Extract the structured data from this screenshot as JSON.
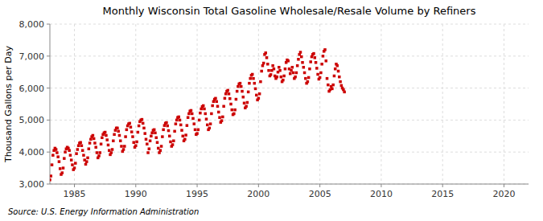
{
  "chart_data": {
    "type": "scatter",
    "title": "Monthly Wisconsin Total Gasoline Wholesale/Resale Volume by Refiners",
    "ylabel": "Thousand Gallons per Day",
    "annotations": [
      "Source: U.S. Energy Information Administration"
    ],
    "color": "#cc0000",
    "marker": "square",
    "grid": true,
    "xlim": [
      1983,
      2022
    ],
    "ylim": [
      3000,
      8000
    ],
    "xticks": [
      1985,
      1990,
      1995,
      2000,
      2005,
      2010,
      2015,
      2020
    ],
    "yticks": [
      {
        "value": 3000,
        "label": "3,000"
      },
      {
        "value": 4000,
        "label": "4,000"
      },
      {
        "value": 5000,
        "label": "5,000"
      },
      {
        "value": 6000,
        "label": "6,000"
      },
      {
        "value": 7000,
        "label": "7,000"
      },
      {
        "value": 8000,
        "label": "8,000"
      }
    ],
    "x": [
      1983.0,
      1983.083,
      1983.167,
      1983.25,
      1983.333,
      1983.417,
      1983.5,
      1983.583,
      1983.667,
      1983.75,
      1983.833,
      1983.917,
      1984.0,
      1984.083,
      1984.167,
      1984.25,
      1984.333,
      1984.417,
      1984.5,
      1984.583,
      1984.667,
      1984.75,
      1984.833,
      1984.917,
      1985.0,
      1985.083,
      1985.167,
      1985.25,
      1985.333,
      1985.417,
      1985.5,
      1985.583,
      1985.667,
      1985.75,
      1985.833,
      1985.917,
      1986.0,
      1986.083,
      1986.167,
      1986.25,
      1986.333,
      1986.417,
      1986.5,
      1986.583,
      1986.667,
      1986.75,
      1986.833,
      1986.917,
      1987.0,
      1987.083,
      1987.167,
      1987.25,
      1987.333,
      1987.417,
      1987.5,
      1987.583,
      1987.667,
      1987.75,
      1987.833,
      1987.917,
      1988.0,
      1988.083,
      1988.167,
      1988.25,
      1988.333,
      1988.417,
      1988.5,
      1988.583,
      1988.667,
      1988.75,
      1988.833,
      1988.917,
      1989.0,
      1989.083,
      1989.167,
      1989.25,
      1989.333,
      1989.417,
      1989.5,
      1989.583,
      1989.667,
      1989.75,
      1989.833,
      1989.917,
      1990.0,
      1990.083,
      1990.167,
      1990.25,
      1990.333,
      1990.417,
      1990.5,
      1990.583,
      1990.667,
      1990.75,
      1990.833,
      1990.917,
      1991.0,
      1991.083,
      1991.167,
      1991.25,
      1991.333,
      1991.417,
      1991.5,
      1991.583,
      1991.667,
      1991.75,
      1991.833,
      1991.917,
      1992.0,
      1992.083,
      1992.167,
      1992.25,
      1992.333,
      1992.417,
      1992.5,
      1992.583,
      1992.667,
      1992.75,
      1992.833,
      1992.917,
      1993.0,
      1993.083,
      1993.167,
      1993.25,
      1993.333,
      1993.417,
      1993.5,
      1993.583,
      1993.667,
      1993.75,
      1993.833,
      1993.917,
      1994.0,
      1994.083,
      1994.167,
      1994.25,
      1994.333,
      1994.417,
      1994.5,
      1994.583,
      1994.667,
      1994.75,
      1994.833,
      1994.917,
      1995.0,
      1995.083,
      1995.167,
      1995.25,
      1995.333,
      1995.417,
      1995.5,
      1995.583,
      1995.667,
      1995.75,
      1995.833,
      1995.917,
      1996.0,
      1996.083,
      1996.167,
      1996.25,
      1996.333,
      1996.417,
      1996.5,
      1996.583,
      1996.667,
      1996.75,
      1996.833,
      1996.917,
      1997.0,
      1997.083,
      1997.167,
      1997.25,
      1997.333,
      1997.417,
      1997.5,
      1997.583,
      1997.667,
      1997.75,
      1997.833,
      1997.917,
      1998.0,
      1998.083,
      1998.167,
      1998.25,
      1998.333,
      1998.417,
      1998.5,
      1998.583,
      1998.667,
      1998.75,
      1998.833,
      1998.917,
      1999.0,
      1999.083,
      1999.167,
      1999.25,
      1999.333,
      1999.417,
      1999.5,
      1999.583,
      1999.667,
      1999.75,
      1999.833,
      1999.917,
      2000.0,
      2000.083,
      2000.167,
      2000.25,
      2000.333,
      2000.417,
      2000.5,
      2000.583,
      2000.667,
      2000.75,
      2000.833,
      2000.917,
      2001.0,
      2001.083,
      2001.167,
      2001.25,
      2001.333,
      2001.417,
      2001.5,
      2001.583,
      2001.667,
      2001.75,
      2001.833,
      2001.917,
      2002.0,
      2002.083,
      2002.167,
      2002.25,
      2002.333,
      2002.417,
      2002.5,
      2002.583,
      2002.667,
      2002.75,
      2002.833,
      2002.917,
      2003.0,
      2003.083,
      2003.167,
      2003.25,
      2003.333,
      2003.417,
      2003.5,
      2003.583,
      2003.667,
      2003.75,
      2003.833,
      2003.917,
      2004.0,
      2004.083,
      2004.167,
      2004.25,
      2004.333,
      2004.417,
      2004.5,
      2004.583,
      2004.667,
      2004.75,
      2004.833,
      2004.917,
      2005.0,
      2005.083,
      2005.167,
      2005.25,
      2005.333,
      2005.417,
      2005.5,
      2005.583,
      2005.667,
      2005.75,
      2005.833,
      2005.917,
      2006.0,
      2006.083,
      2006.167,
      2006.25,
      2006.333,
      2006.417,
      2006.5,
      2006.583,
      2006.667,
      2006.75,
      2006.833,
      2006.917,
      2007.0
    ],
    "values": [
      3130,
      3250,
      3600,
      3900,
      4050,
      4120,
      4080,
      3980,
      3850,
      3700,
      3480,
      3300,
      3350,
      3500,
      3800,
      4000,
      4100,
      4150,
      4120,
      4050,
      3900,
      3750,
      3600,
      3450,
      3500,
      3650,
      3950,
      4080,
      4200,
      4280,
      4300,
      4200,
      4050,
      3900,
      3750,
      3620,
      3700,
      3820,
      4100,
      4280,
      4400,
      4480,
      4520,
      4420,
      4280,
      4150,
      3980,
      3820,
      3880,
      3980,
      4250,
      4450,
      4550,
      4600,
      4620,
      4520,
      4380,
      4220,
      4050,
      3920,
      3980,
      4080,
      4350,
      4550,
      4680,
      4750,
      4750,
      4650,
      4520,
      4350,
      4180,
      4020,
      4080,
      4180,
      4480,
      4700,
      4820,
      4880,
      4900,
      4780,
      4630,
      4480,
      4300,
      4150,
      4200,
      4320,
      4620,
      4820,
      4950,
      5000,
      5020,
      4900,
      4750,
      4580,
      4400,
      4250,
      3980,
      4100,
      4350,
      4500,
      4600,
      4680,
      4700,
      4600,
      4450,
      4300,
      4120,
      3980,
      4050,
      4180,
      4480,
      4700,
      4830,
      4900,
      4920,
      4820,
      4670,
      4500,
      4320,
      4180,
      4230,
      4350,
      4650,
      4880,
      5000,
      5080,
      5100,
      5000,
      4850,
      4680,
      4500,
      4350,
      4400,
      4530,
      4830,
      5080,
      5200,
      5280,
      5300,
      5200,
      5050,
      4880,
      4700,
      4550,
      4580,
      4700,
      5000,
      5220,
      5350,
      5420,
      5450,
      5350,
      5200,
      5030,
      4850,
      4700,
      4750,
      4880,
      5200,
      5450,
      5580,
      5650,
      5680,
      5580,
      5430,
      5250,
      5080,
      4930,
      4980,
      5100,
      5430,
      5680,
      5820,
      5900,
      5930,
      5820,
      5670,
      5500,
      5320,
      5170,
      5200,
      5320,
      5650,
      5900,
      6050,
      6130,
      6150,
      6050,
      5900,
      5720,
      5530,
      5380,
      5430,
      5550,
      5880,
      6150,
      6300,
      6400,
      6430,
      6300,
      6150,
      5980,
      5780,
      5630,
      5680,
      5820,
      6200,
      6530,
      6700,
      6780,
      7050,
      7100,
      6950,
      6750,
      6550,
      6380,
      6420,
      6550,
      6700,
      6600,
      6380,
      6300,
      6350,
      6500,
      6650,
      6550,
      6350,
      6200,
      6250,
      6380,
      6600,
      6800,
      6880,
      6850,
      6600,
      6450,
      6550,
      6650,
      6480,
      6300,
      6350,
      6480,
      6700,
      6900,
      7050,
      7120,
      6980,
      6800,
      6650,
      6480,
      6300,
      6150,
      6200,
      6330,
      6600,
      6820,
      6980,
      7050,
      7080,
      6950,
      6800,
      6620,
      6430,
      6280,
      6330,
      6480,
      6750,
      7000,
      7150,
      7200,
      6850,
      6300,
      6100,
      5900,
      5950,
      6050,
      5980,
      6100,
      6380,
      6600,
      6750,
      6700,
      6530,
      6350,
      6200,
      6080,
      6000,
      5950,
      5880
    ]
  }
}
